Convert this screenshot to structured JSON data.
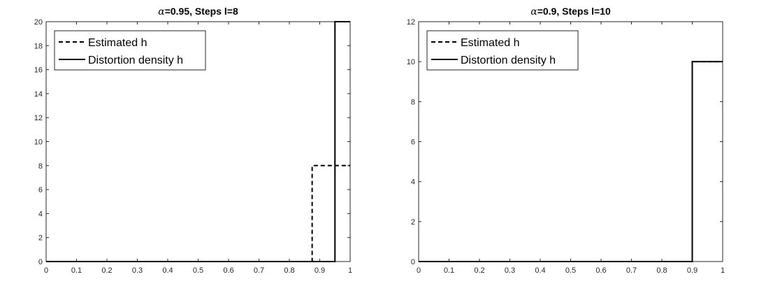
{
  "chart_data": [
    {
      "type": "line",
      "title": "=0.95, Steps l=8",
      "title_symbol": "α",
      "xlabel": "",
      "ylabel": "",
      "xlim": [
        0,
        1
      ],
      "ylim": [
        0,
        20
      ],
      "xticks": [
        "0",
        "0.1",
        "0.2",
        "0.3",
        "0.4",
        "0.5",
        "0.6",
        "0.7",
        "0.8",
        "0.9",
        "1"
      ],
      "yticks": [
        "0",
        "2",
        "4",
        "6",
        "8",
        "10",
        "12",
        "14",
        "16",
        "18",
        "20"
      ],
      "grid": false,
      "legend_position": "top-left",
      "series": [
        {
          "name": "Estimated h",
          "style": "dashed",
          "color": "#000000",
          "x": [
            0,
            0.875,
            0.875,
            1
          ],
          "y": [
            0,
            0,
            8,
            8
          ]
        },
        {
          "name": "Distortion density h",
          "style": "solid",
          "color": "#000000",
          "x": [
            0,
            0.95,
            0.95,
            1
          ],
          "y": [
            0,
            0,
            20,
            20
          ]
        }
      ]
    },
    {
      "type": "line",
      "title": "=0.9, Steps l=10",
      "title_symbol": "α",
      "xlabel": "",
      "ylabel": "",
      "xlim": [
        0,
        1
      ],
      "ylim": [
        0,
        12
      ],
      "xticks": [
        "0",
        "0.1",
        "0.2",
        "0.3",
        "0.4",
        "0.5",
        "0.6",
        "0.7",
        "0.8",
        "0.9",
        "1"
      ],
      "yticks": [
        "0",
        "2",
        "4",
        "6",
        "8",
        "10",
        "12"
      ],
      "grid": false,
      "legend_position": "top-left",
      "series": [
        {
          "name": "Estimated h",
          "style": "dashed",
          "color": "#000000",
          "x": [
            0,
            0.9,
            0.9,
            1
          ],
          "y": [
            0,
            0,
            10,
            10
          ]
        },
        {
          "name": "Distortion density h",
          "style": "solid",
          "color": "#000000",
          "x": [
            0,
            0.9,
            0.9,
            1
          ],
          "y": [
            0,
            0,
            10,
            10
          ]
        }
      ]
    }
  ]
}
